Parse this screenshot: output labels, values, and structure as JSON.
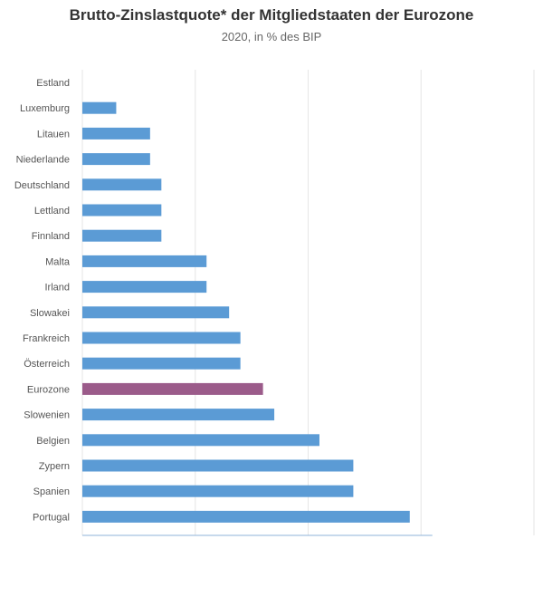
{
  "chart_data": {
    "type": "bar",
    "orientation": "horizontal",
    "title": "Brutto-Zinslastquote* der Mitgliedstaaten der Eurozone",
    "subtitle": "2020, in % des BIP",
    "categories": [
      "Estland",
      "Luxemburg",
      "Litauen",
      "Niederlande",
      "Deutschland",
      "Lettland",
      "Finnland",
      "Malta",
      "Irland",
      "Slowakei",
      "Frankreich",
      "Österreich",
      "Eurozone",
      "Slowenien",
      "Belgien",
      "Zypern",
      "Spanien",
      "Portugal"
    ],
    "values": [
      0.0,
      0.3,
      0.6,
      0.6,
      0.7,
      0.7,
      0.7,
      1.1,
      1.1,
      1.3,
      1.4,
      1.4,
      1.6,
      1.7,
      2.1,
      2.4,
      2.4,
      2.9
    ],
    "highlight": "Eurozone",
    "xlim": [
      0,
      4
    ],
    "grid": true,
    "colors": {
      "bar": "#5b9bd5",
      "highlight": "#9b5b8a",
      "grid": "#e6e6e6",
      "axis": "#8fb3d9"
    }
  }
}
